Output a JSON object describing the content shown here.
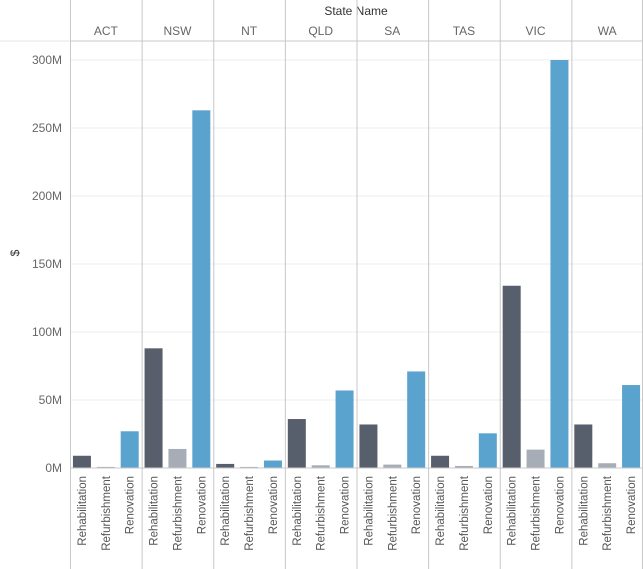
{
  "chart_data": {
    "type": "bar",
    "title": "State Name",
    "xlabel": "",
    "ylabel": "$",
    "ylim": [
      0,
      300000000
    ],
    "yticks": [
      {
        "value": 0,
        "label": "0M"
      },
      {
        "value": 50000000,
        "label": "50M"
      },
      {
        "value": 100000000,
        "label": "100M"
      },
      {
        "value": 150000000,
        "label": "150M"
      },
      {
        "value": 200000000,
        "label": "200M"
      },
      {
        "value": 250000000,
        "label": "250M"
      },
      {
        "value": 300000000,
        "label": "300M"
      }
    ],
    "grid": true,
    "categories": [
      "Rehabilitation",
      "Refurbishment",
      "Renovation"
    ],
    "colors": {
      "Rehabilitation": "#585f6c",
      "Refurbishment": "#a7adb6",
      "Renovation": "#5ba3cf"
    },
    "groups": [
      {
        "name": "ACT",
        "values": [
          9000000,
          800000,
          27000000
        ]
      },
      {
        "name": "NSW",
        "values": [
          88000000,
          14000000,
          263000000
        ]
      },
      {
        "name": "NT",
        "values": [
          3000000,
          800000,
          5500000
        ]
      },
      {
        "name": "QLD",
        "values": [
          36000000,
          2000000,
          57000000
        ]
      },
      {
        "name": "SA",
        "values": [
          32000000,
          2500000,
          71000000
        ]
      },
      {
        "name": "TAS",
        "values": [
          9000000,
          1500000,
          25500000
        ]
      },
      {
        "name": "VIC",
        "values": [
          134000000,
          13500000,
          300000000
        ]
      },
      {
        "name": "WA",
        "values": [
          32000000,
          3500000,
          61000000
        ]
      }
    ]
  }
}
